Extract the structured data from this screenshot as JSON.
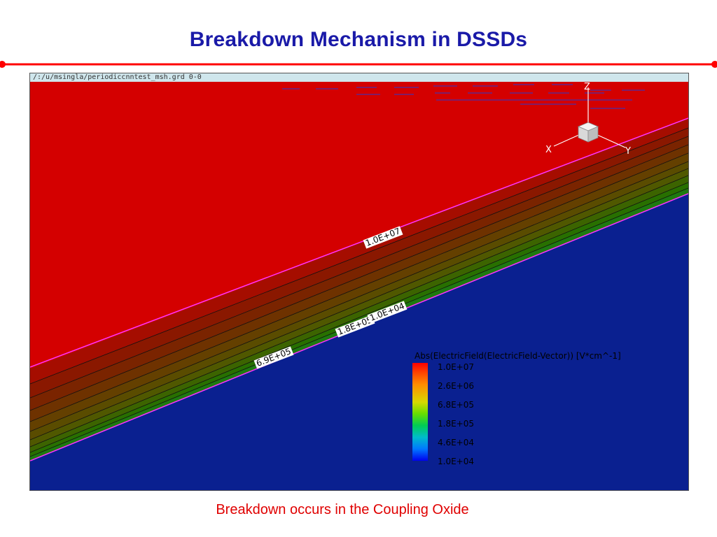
{
  "slide": {
    "title": "Breakdown Mechanism in DSSDs",
    "caption": "Breakdown occurs in the Coupling Oxide"
  },
  "plot": {
    "file_path": "/:/u/msingla/periodiccnntest_msh.grd 0-0",
    "axes": {
      "x_label": "X",
      "y_label": "Y",
      "z_label": "Z"
    },
    "contour_labels": [
      "1.0E+07",
      "1.8E+05",
      "1.0E+04",
      "6.9E+05"
    ],
    "legend": {
      "title": "Abs(ElectricField(ElectricField-Vector)) [V*cm^-1]",
      "ticks": [
        "1.0E+07",
        "2.6E+06",
        "6.8E+05",
        "1.8E+05",
        "4.6E+04",
        "1.0E+04"
      ]
    }
  },
  "colors": {
    "title": "#1a1aa8",
    "rule": "#ff0000",
    "high_field": "#d40000",
    "low_field": "#0a2090",
    "caption": "#e00000"
  }
}
